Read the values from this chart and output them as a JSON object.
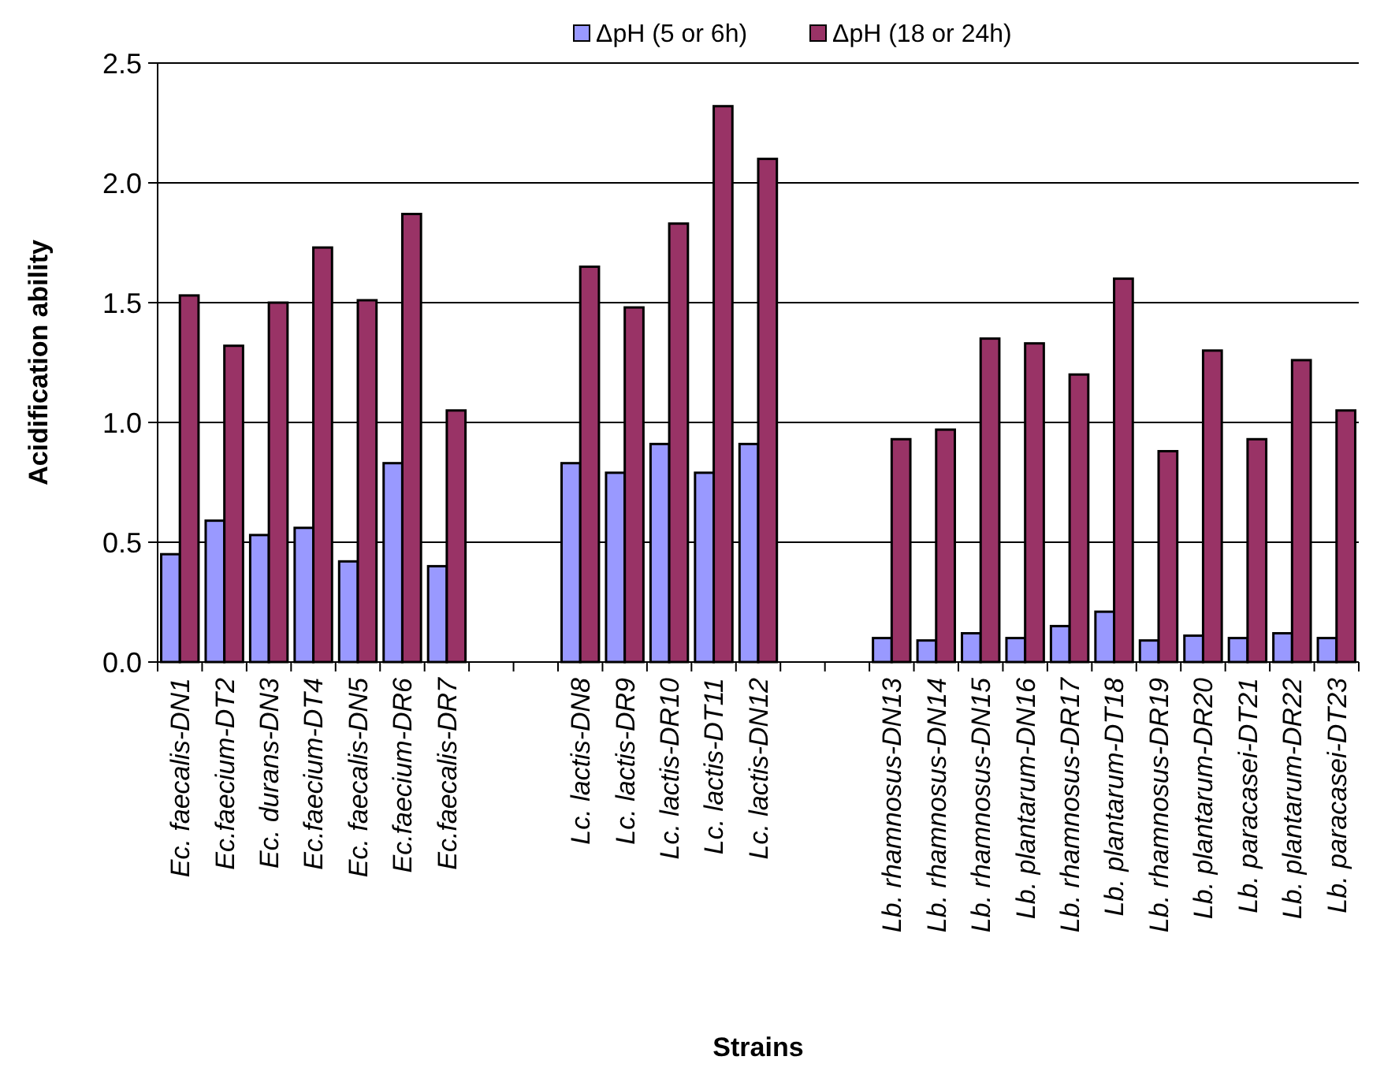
{
  "chart_data": {
    "type": "bar",
    "xlabel": "Strains",
    "ylabel": "Acidification ability",
    "categories": [
      "Ec. faecalis-DN1",
      "Ec.faecium-DT2",
      "Ec. durans-DN3",
      "Ec.faecium-DT4",
      "Ec. faecalis-DN5",
      "Ec.faecium-DR6",
      "Ec.faecalis-DR7",
      null,
      null,
      "Lc. lactis-DN8",
      "Lc. lactis-DR9",
      "Lc. lactis-DR10",
      "Lc. lactis-DT11",
      "Lc. lactis-DN12",
      null,
      null,
      "Lb. rhamnosus-DN13",
      "Lb. rhamnosus-DN14",
      "Lb. rhamnosus-DN15",
      "Lb. plantarum-DN16",
      "Lb. rhamnosus-DR17",
      "Lb. plantarum-DT18",
      "Lb. rhamnosus-DR19",
      "Lb. plantarum-DR20",
      "Lb. paracasei-DT21",
      "Lb. plantarum-DR22",
      "Lb. paracasei-DT23"
    ],
    "series": [
      {
        "name": "ΔpH (5 or 6h)",
        "color": "#9999ff",
        "values": [
          0.45,
          0.59,
          0.53,
          0.56,
          0.42,
          0.83,
          0.4,
          null,
          null,
          0.83,
          0.79,
          0.91,
          0.79,
          0.91,
          null,
          null,
          0.1,
          0.09,
          0.12,
          0.1,
          0.15,
          0.21,
          0.09,
          0.11,
          0.1,
          0.12,
          0.1
        ]
      },
      {
        "name": "ΔpH (18 or 24h)",
        "color": "#993366",
        "values": [
          1.53,
          1.32,
          1.5,
          1.73,
          1.51,
          1.87,
          1.05,
          null,
          null,
          1.65,
          1.48,
          1.83,
          2.32,
          2.1,
          null,
          null,
          0.93,
          0.97,
          1.35,
          1.33,
          1.2,
          1.6,
          0.88,
          1.3,
          0.93,
          1.26,
          1.05
        ]
      }
    ],
    "ylim": [
      0,
      2.5
    ],
    "yticks": [
      {
        "value": 0,
        "label": "0.0"
      },
      {
        "value": 0.5,
        "label": "0.5"
      },
      {
        "value": 1,
        "label": "1.0"
      },
      {
        "value": 1.5,
        "label": "1.5"
      },
      {
        "value": 2,
        "label": "2.0"
      },
      {
        "value": 2.5,
        "label": "2.5"
      }
    ],
    "grid": "y",
    "legend": "top"
  }
}
